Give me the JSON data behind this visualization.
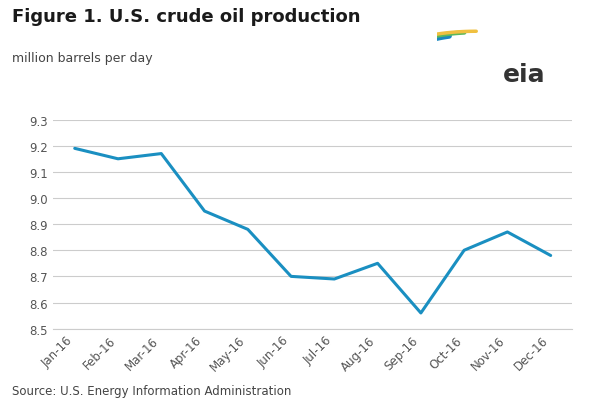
{
  "title": "Figure 1. U.S. crude oil production",
  "subtitle": "million barrels per day",
  "source": "Source: U.S. Energy Information Administration",
  "x_labels": [
    "Jan-16",
    "Feb-16",
    "Mar-16",
    "Apr-16",
    "May-16",
    "Jun-16",
    "Jul-16",
    "Aug-16",
    "Sep-16",
    "Oct-16",
    "Nov-16",
    "Dec-16"
  ],
  "y_values": [
    9.19,
    9.15,
    9.17,
    8.95,
    8.88,
    8.7,
    8.69,
    8.75,
    8.56,
    8.8,
    8.87,
    8.78
  ],
  "ylim": [
    8.5,
    9.3
  ],
  "yticks": [
    8.5,
    8.6,
    8.7,
    8.8,
    8.9,
    9.0,
    9.1,
    9.2,
    9.3
  ],
  "line_color": "#1a8fc1",
  "line_width": 2.2,
  "background_color": "#ffffff",
  "grid_color": "#cccccc",
  "title_fontsize": 13,
  "subtitle_fontsize": 9,
  "source_fontsize": 8.5,
  "tick_fontsize": 8.5,
  "logo_blue": "#1a87c0",
  "logo_green": "#5cb85c",
  "logo_yellow": "#f0c040",
  "logo_text_color": "#333333"
}
